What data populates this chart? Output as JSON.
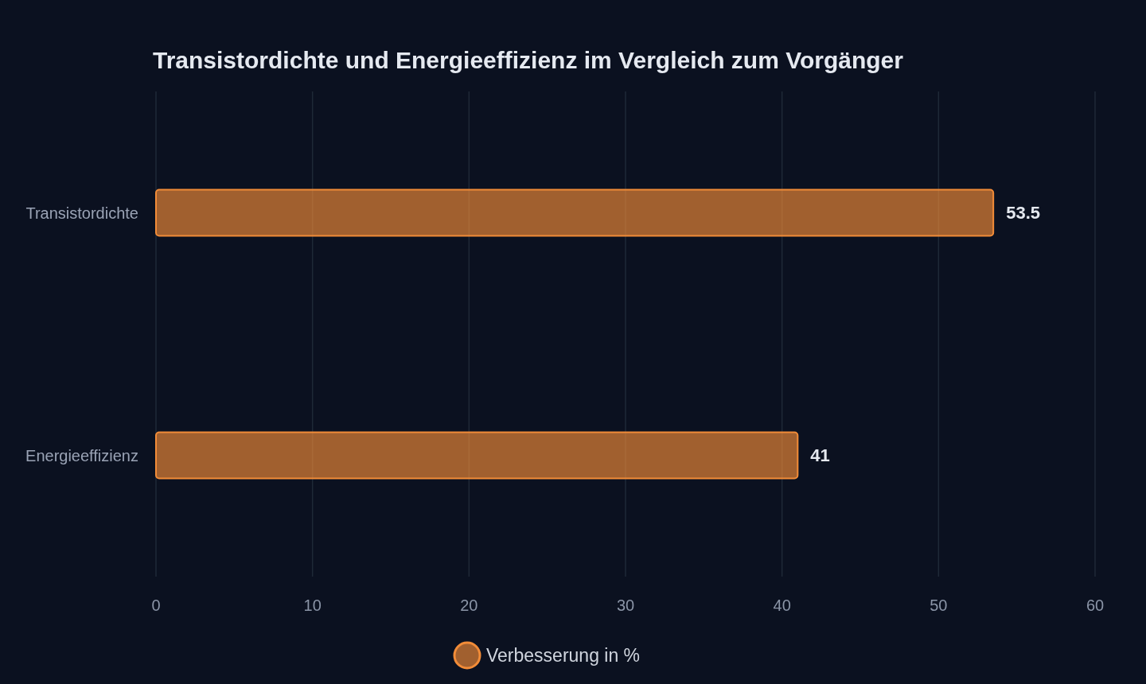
{
  "chart_data": {
    "type": "bar",
    "orientation": "horizontal",
    "title": "Transistordichte und Energieeffizienz im Vergleich zum Vorgänger",
    "categories": [
      "Transistordichte",
      "Energieeffizienz"
    ],
    "series": [
      {
        "name": "Verbesserung in %",
        "color": "#f28c38",
        "values": [
          53.5,
          41
        ]
      }
    ],
    "xlim": [
      0,
      60
    ],
    "xticks": [
      0,
      10,
      20,
      30,
      40,
      50,
      60
    ],
    "grid": "x",
    "legend": "bottom",
    "data_labels": true
  }
}
